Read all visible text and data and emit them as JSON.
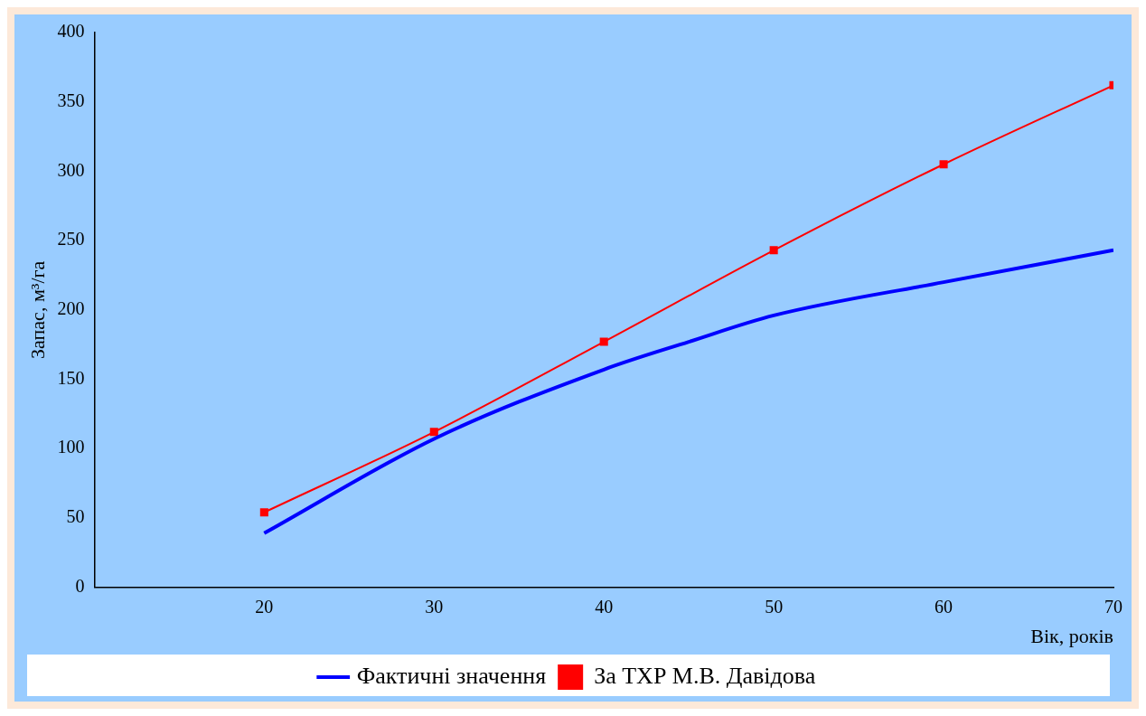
{
  "chart_data": {
    "type": "line",
    "xlabel": "Вік, років",
    "ylabel": "Запас, м³/га",
    "xlim": [
      10,
      70
    ],
    "xticks": [
      {
        "value": 10,
        "label": null
      },
      20,
      30,
      40,
      50,
      60,
      70
    ],
    "ylim": [
      0,
      400
    ],
    "yticks": [
      0,
      50,
      100,
      150,
      200,
      250,
      300,
      350,
      400
    ],
    "grid": false,
    "legend": "bottom",
    "series": [
      {
        "name": "Фактичні значення",
        "color": "#0000ff",
        "x": [
          20,
          30,
          40,
          45,
          50,
          60,
          70
        ],
        "values": [
          39,
          107,
          157,
          177,
          196,
          220,
          243
        ],
        "marker": "none"
      },
      {
        "name": "За ТХР М.В. Давідова",
        "color": "#ff0000",
        "x": [
          20,
          30,
          40,
          50,
          60,
          70
        ],
        "values": [
          54,
          112,
          177,
          243,
          305,
          362
        ],
        "marker": "square"
      }
    ]
  }
}
